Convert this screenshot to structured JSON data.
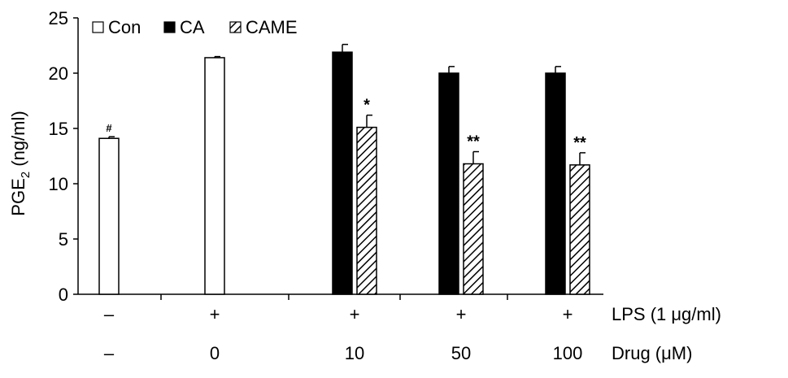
{
  "chart_data": {
    "type": "bar",
    "ylabel_main": "PGE",
    "ylabel_sub": "2",
    "ylabel_unit": " (ng/ml)",
    "ylim": [
      0,
      25
    ],
    "yticks": [
      0,
      5,
      10,
      15,
      20,
      25
    ],
    "grid": false,
    "legend_position": "top-left",
    "legend": [
      {
        "label": "Con",
        "fill": "white"
      },
      {
        "label": "CA",
        "fill": "black"
      },
      {
        "label": "CAME",
        "fill": "hatch"
      }
    ],
    "row_labels": {
      "lps": "LPS (1 μg/ml)",
      "drug": "Drug (μM)"
    },
    "groups": [
      {
        "lps": "–",
        "drug": "–",
        "bars": [
          {
            "series": "Con",
            "value": 14.1,
            "error": 0.15,
            "annotation": "#"
          }
        ]
      },
      {
        "lps": "+",
        "drug": "0",
        "bars": [
          {
            "series": "Con",
            "value": 21.4,
            "error": 0.1,
            "annotation": ""
          }
        ]
      },
      {
        "lps": "+",
        "drug": "10",
        "bars": [
          {
            "series": "CA",
            "value": 21.9,
            "error": 0.7,
            "annotation": ""
          },
          {
            "series": "CAME",
            "value": 15.1,
            "error": 1.1,
            "annotation": "*"
          }
        ]
      },
      {
        "lps": "+",
        "drug": "50",
        "bars": [
          {
            "series": "CA",
            "value": 20.0,
            "error": 0.6,
            "annotation": ""
          },
          {
            "series": "CAME",
            "value": 11.8,
            "error": 1.1,
            "annotation": "**"
          }
        ]
      },
      {
        "lps": "+",
        "drug": "100",
        "bars": [
          {
            "series": "CA",
            "value": 20.0,
            "error": 0.6,
            "annotation": ""
          },
          {
            "series": "CAME",
            "value": 11.7,
            "error": 1.1,
            "annotation": "**"
          }
        ]
      }
    ]
  }
}
